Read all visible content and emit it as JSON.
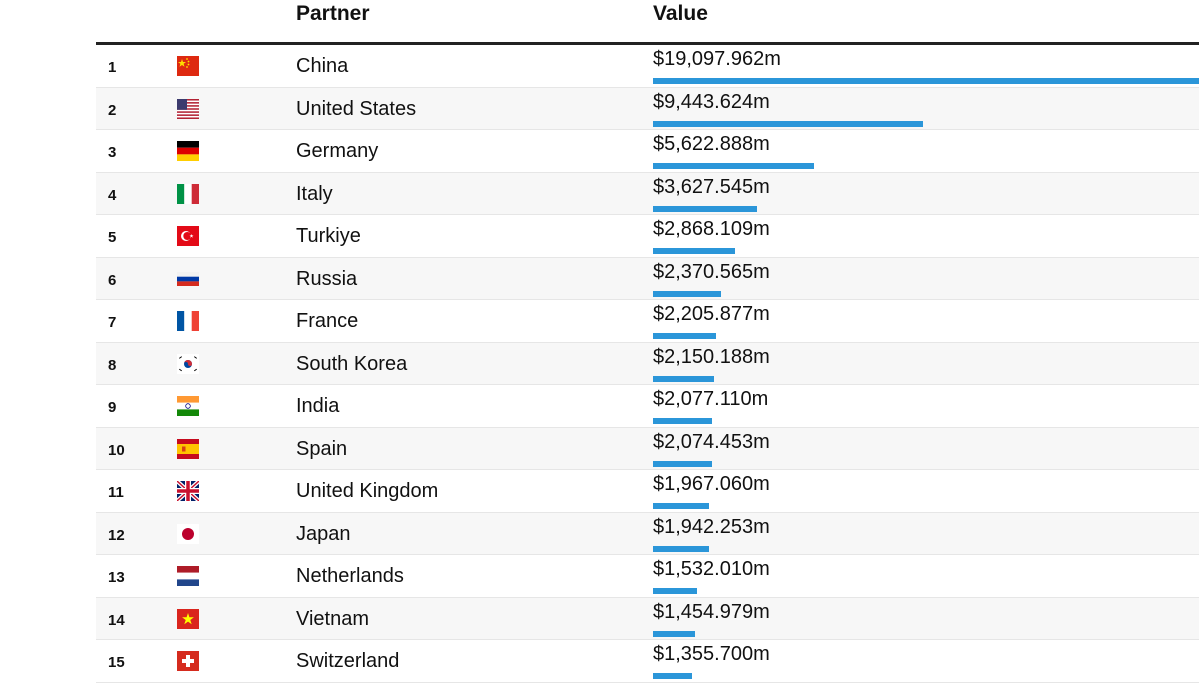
{
  "header": {
    "partner": "Partner",
    "value": "Value"
  },
  "chart_data": {
    "type": "table",
    "columns": [
      "",
      "",
      "Partner",
      "Value"
    ],
    "rows": [
      {
        "rank": "1",
        "flag": "china-flag-icon",
        "partner": "China",
        "value_label": "$19,097.962m",
        "value": 19097.962
      },
      {
        "rank": "2",
        "flag": "united-states-flag-icon",
        "partner": "United States",
        "value_label": "$9,443.624m",
        "value": 9443.624
      },
      {
        "rank": "3",
        "flag": "germany-flag-icon",
        "partner": "Germany",
        "value_label": "$5,622.888m",
        "value": 5622.888
      },
      {
        "rank": "4",
        "flag": "italy-flag-icon",
        "partner": "Italy",
        "value_label": "$3,627.545m",
        "value": 3627.545
      },
      {
        "rank": "5",
        "flag": "turkiye-flag-icon",
        "partner": "Turkiye",
        "value_label": "$2,868.109m",
        "value": 2868.109
      },
      {
        "rank": "6",
        "flag": "russia-flag-icon",
        "partner": "Russia",
        "value_label": "$2,370.565m",
        "value": 2370.565
      },
      {
        "rank": "7",
        "flag": "france-flag-icon",
        "partner": "France",
        "value_label": "$2,205.877m",
        "value": 2205.877
      },
      {
        "rank": "8",
        "flag": "south-korea-flag-icon",
        "partner": "South Korea",
        "value_label": "$2,150.188m",
        "value": 2150.188
      },
      {
        "rank": "9",
        "flag": "india-flag-icon",
        "partner": "India",
        "value_label": "$2,077.110m",
        "value": 2077.11
      },
      {
        "rank": "10",
        "flag": "spain-flag-icon",
        "partner": "Spain",
        "value_label": "$2,074.453m",
        "value": 2074.453
      },
      {
        "rank": "11",
        "flag": "united-kingdom-flag-icon",
        "partner": "United Kingdom",
        "value_label": "$1,967.060m",
        "value": 1967.06
      },
      {
        "rank": "12",
        "flag": "japan-flag-icon",
        "partner": "Japan",
        "value_label": "$1,942.253m",
        "value": 1942.253
      },
      {
        "rank": "13",
        "flag": "netherlands-flag-icon",
        "partner": "Netherlands",
        "value_label": "$1,532.010m",
        "value": 1532.01
      },
      {
        "rank": "14",
        "flag": "vietnam-flag-icon",
        "partner": "Vietnam",
        "value_label": "$1,454.979m",
        "value": 1454.979
      },
      {
        "rank": "15",
        "flag": "switzerland-flag-icon",
        "partner": "Switzerland",
        "value_label": "$1,355.700m",
        "value": 1355.7
      }
    ],
    "bar_color": "#2b96d9"
  }
}
